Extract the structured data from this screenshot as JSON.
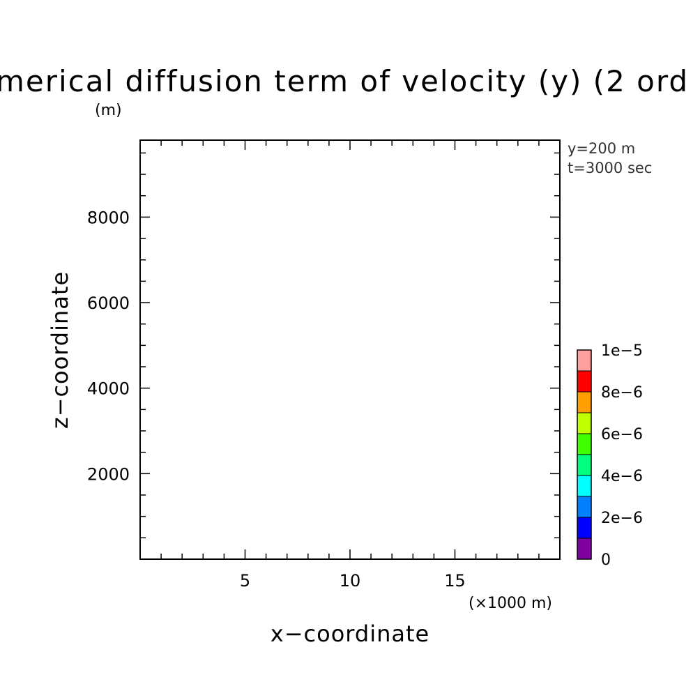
{
  "chart_data": {
    "type": "heatmap",
    "title": "merical diffusion term of velocity (y) (2 ord",
    "xlabel": "x−coordinate",
    "ylabel": "z−coordinate",
    "x_unit": "(×1000 m)",
    "y_unit": "(m)",
    "xlim": [
      0,
      20
    ],
    "ylim": [
      0,
      9800
    ],
    "x_ticks": [
      {
        "value": 5,
        "label": "5"
      },
      {
        "value": 10,
        "label": "10"
      },
      {
        "value": 15,
        "label": "15"
      }
    ],
    "y_ticks": [
      {
        "value": 2000,
        "label": "2000"
      },
      {
        "value": 4000,
        "label": "4000"
      },
      {
        "value": 6000,
        "label": "6000"
      },
      {
        "value": 8000,
        "label": "8000"
      }
    ],
    "x_minor_step": 1,
    "y_minor_step": 500,
    "annotations": [
      "y=200 m",
      "t=3000 sec"
    ],
    "colorbar": {
      "min": 0,
      "max": 1e-05,
      "colors": [
        "#7f00a0",
        "#0000ff",
        "#0080ff",
        "#00ffff",
        "#00ff80",
        "#40ff00",
        "#c0ff00",
        "#ffa000",
        "#ff0000",
        "#ffa0a0"
      ],
      "labels": [
        {
          "value": 0,
          "label": "0"
        },
        {
          "value": 2e-06,
          "label": "2e−6"
        },
        {
          "value": 4e-06,
          "label": "4e−6"
        },
        {
          "value": 6e-06,
          "label": "6e−6"
        },
        {
          "value": 8e-06,
          "label": "8e−6"
        },
        {
          "value": 1e-05,
          "label": "1e−5"
        }
      ]
    },
    "field_values": []
  }
}
